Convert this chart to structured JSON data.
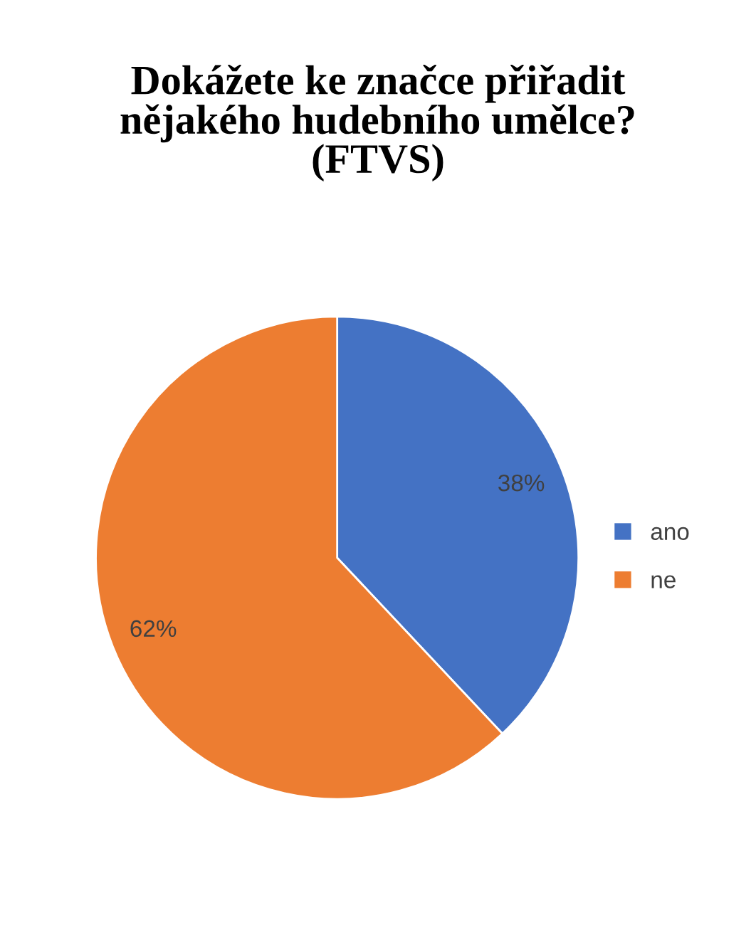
{
  "chart_data": {
    "type": "pie",
    "title": "Dokážete ke značce přiřadit\nnějakého hudebního umělce?\n(FTVS)",
    "categories": [
      "ano",
      "ne"
    ],
    "values": [
      38,
      62
    ],
    "colors": [
      "#4472c4",
      "#ed7d31"
    ],
    "value_labels": [
      "38%",
      "62%"
    ],
    "legend": "right"
  }
}
